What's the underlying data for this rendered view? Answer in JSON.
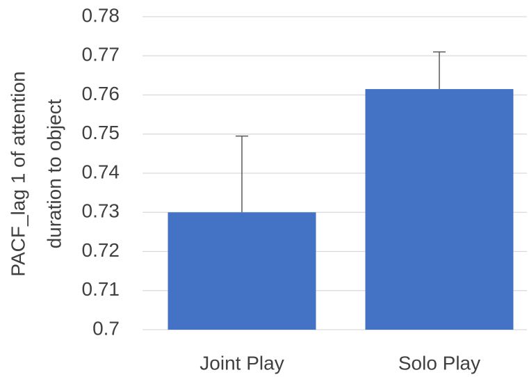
{
  "chart_data": {
    "type": "bar",
    "y_label": [
      "PACF_lag 1 of attention",
      "duration to object"
    ],
    "categories": [
      "Joint Play",
      "Solo Play"
    ],
    "values": [
      0.73,
      0.7615
    ],
    "errors": [
      0.0195,
      0.0095
    ],
    "color": "#4472c4",
    "ylim": [
      0.7,
      0.78
    ],
    "yticks": [
      0.7,
      0.71,
      0.72,
      0.73,
      0.74,
      0.75,
      0.76,
      0.77,
      0.78
    ],
    "grid": true
  }
}
